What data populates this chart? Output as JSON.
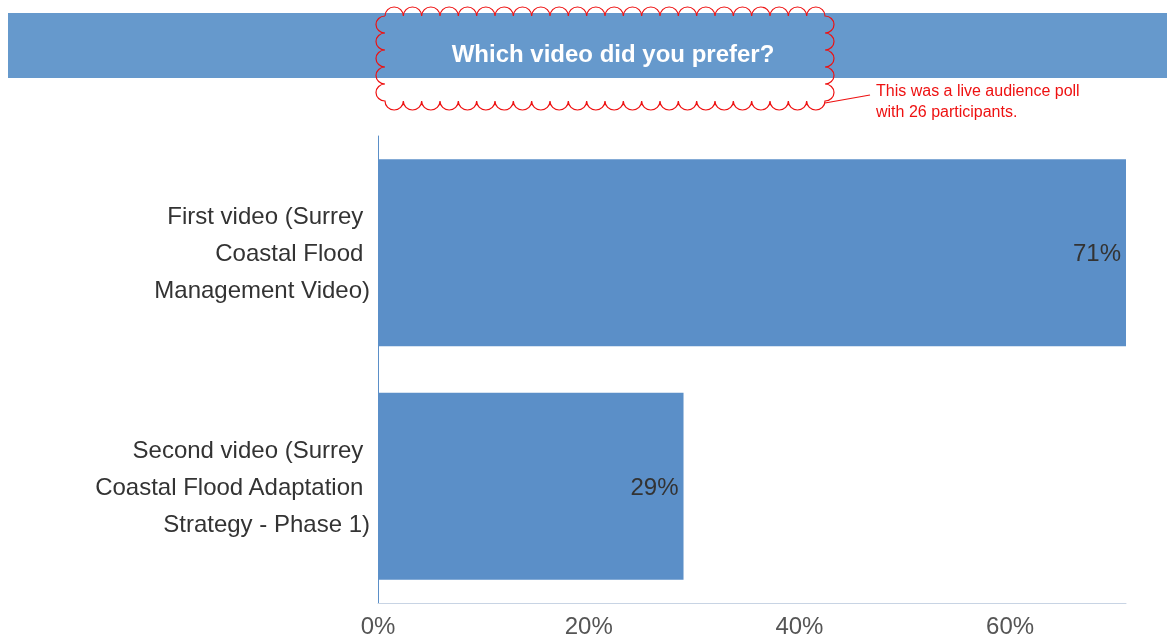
{
  "chart_data": {
    "type": "bar",
    "orientation": "horizontal",
    "title": "Which video did you prefer?",
    "categories": [
      "First video (Surrey Coastal Flood Management Video)",
      "Second video (Surrey Coastal Flood Adaptation Strategy - Phase 1)"
    ],
    "values": [
      71,
      29
    ],
    "color": "#5b8fc8",
    "value_labels": [
      "71%",
      "29%"
    ],
    "xlim": [
      0,
      71
    ],
    "xticks": [
      {
        "value": 0,
        "label": "0%"
      },
      {
        "value": 20,
        "label": "20%"
      },
      {
        "value": 40,
        "label": "40%"
      },
      {
        "value": 60,
        "label": "60%"
      }
    ],
    "grid": false,
    "annotations": [
      "This was a live audience poll with 26 participants."
    ]
  }
}
